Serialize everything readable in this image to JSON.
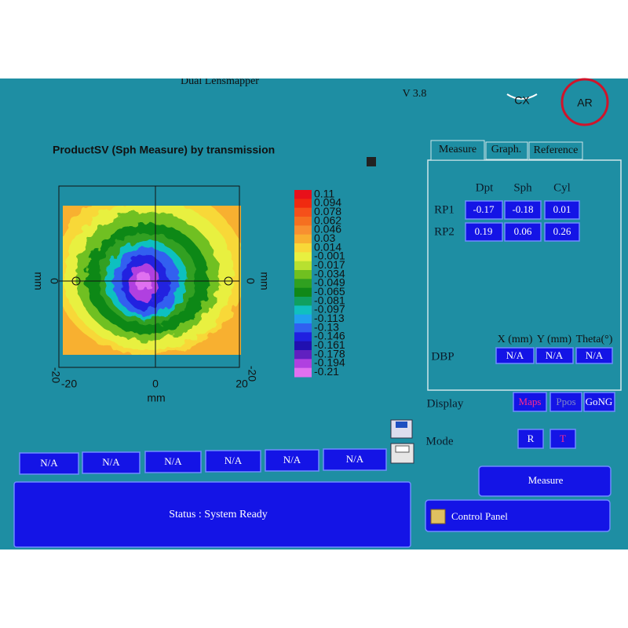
{
  "header": {
    "title": "Dual Lensmapper",
    "version": "V 3.8",
    "lens_label": "CX",
    "logo": "AR"
  },
  "map": {
    "title": "ProductSV (Sph Measure) by transmission",
    "y_axis_label": "mm",
    "y2_axis_label": "mm",
    "x_axis_label": "mm",
    "x_ticks": [
      "-20",
      "0",
      "20"
    ],
    "y_ticks": [
      "0",
      "-20"
    ],
    "y2_ticks": [
      "0",
      "-20"
    ],
    "scale": [
      {
        "label": "0.11",
        "color": "#e8101a"
      },
      {
        "label": "0.094",
        "color": "#f02a10"
      },
      {
        "label": "0.078",
        "color": "#f5501a"
      },
      {
        "label": "0.062",
        "color": "#f57020"
      },
      {
        "label": "0.046",
        "color": "#f89030"
      },
      {
        "label": "0.03",
        "color": "#f8b030"
      },
      {
        "label": "0.014",
        "color": "#f8d838"
      },
      {
        "label": "-0.001",
        "color": "#e8f040"
      },
      {
        "label": "-0.017",
        "color": "#b8e030"
      },
      {
        "label": "-0.034",
        "color": "#70c020"
      },
      {
        "label": "-0.049",
        "color": "#30a020"
      },
      {
        "label": "-0.065",
        "color": "#108818"
      },
      {
        "label": "-0.081",
        "color": "#10a060"
      },
      {
        "label": "-0.097",
        "color": "#10c0c0"
      },
      {
        "label": "-0.113",
        "color": "#20a0f0"
      },
      {
        "label": "-0.13",
        "color": "#3060f0"
      },
      {
        "label": "-0.146",
        "color": "#2020e0"
      },
      {
        "label": "-0.161",
        "color": "#2010b0"
      },
      {
        "label": "-0.178",
        "color": "#6020c0"
      },
      {
        "label": "-0.194",
        "color": "#b040e0"
      },
      {
        "label": "-0.21",
        "color": "#e070f0"
      }
    ]
  },
  "tabs": [
    "Measure",
    "Graph.",
    "Reference"
  ],
  "measure": {
    "columns": [
      "Dpt",
      "Sph",
      "Cyl"
    ],
    "rows": [
      {
        "label": "RP1",
        "values": [
          "-0.17",
          "-0.18",
          "0.01"
        ]
      },
      {
        "label": "RP2",
        "values": [
          "0.19",
          "0.06",
          "0.26"
        ]
      }
    ]
  },
  "dbp": {
    "label": "DBP",
    "columns": [
      "X (mm)",
      "Y (mm)",
      "Theta(°)"
    ],
    "values": [
      "N/A",
      "N/A",
      "N/A"
    ]
  },
  "display": {
    "label": "Display",
    "buttons": [
      "Maps",
      "Ppos",
      "GoNG"
    ]
  },
  "mode": {
    "label": "Mode",
    "buttons": [
      "R",
      "T"
    ]
  },
  "measure_button": "Measure",
  "control_panel": "Control Panel",
  "results": [
    "N/A",
    "N/A",
    "N/A",
    "N/A",
    "N/A",
    "N/A"
  ],
  "status": "Status : System Ready"
}
